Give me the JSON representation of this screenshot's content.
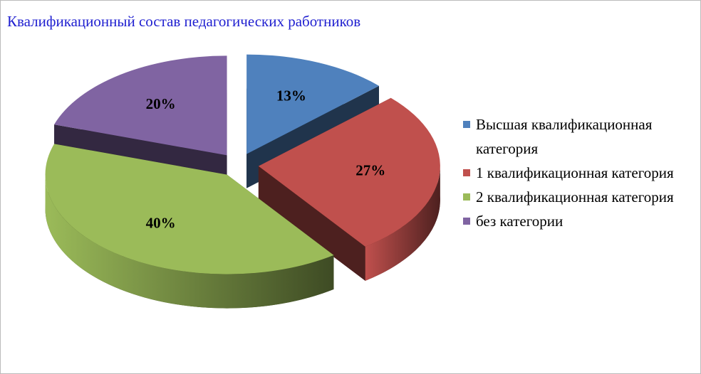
{
  "chart_data": {
    "type": "pie",
    "title": "Квалификационный состав педагогических работников",
    "categories": [
      "Высшая квалификационная категория",
      "1 квалификационная категория",
      "2 квалификационная категория",
      "без категории"
    ],
    "values": [
      13,
      27,
      40,
      20
    ],
    "value_labels": [
      "13%",
      "27%",
      "40%",
      "20%"
    ],
    "colors": [
      "#4f81bd",
      "#c0504d",
      "#9bbb59",
      "#8064a2"
    ],
    "legend": "right"
  }
}
